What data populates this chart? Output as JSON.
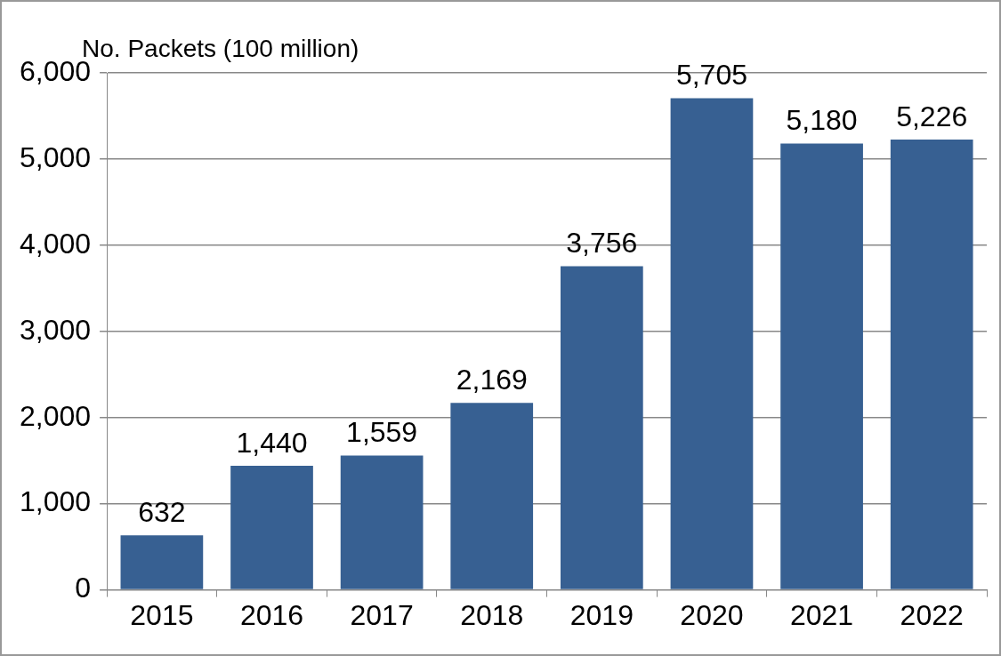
{
  "chart_data": {
    "type": "bar",
    "ylabel": "No. Packets (100 million)",
    "categories": [
      "2015",
      "2016",
      "2017",
      "2018",
      "2019",
      "2020",
      "2021",
      "2022"
    ],
    "values": [
      632,
      1440,
      1559,
      2169,
      3756,
      5705,
      5180,
      5226
    ],
    "value_labels": [
      "632",
      "1,440",
      "1,559",
      "2,169",
      "3,756",
      "5,705",
      "5,180",
      "5,226"
    ],
    "color": "#376092",
    "ylim": [
      0,
      6000
    ],
    "yticks": [
      {
        "value": 0,
        "label": "0"
      },
      {
        "value": 1000,
        "label": "1,000"
      },
      {
        "value": 2000,
        "label": "2,000"
      },
      {
        "value": 3000,
        "label": "3,000"
      },
      {
        "value": 4000,
        "label": "4,000"
      },
      {
        "value": 5000,
        "label": "5,000"
      },
      {
        "value": 6000,
        "label": "6,000"
      }
    ],
    "grid": "y",
    "legend": false
  }
}
